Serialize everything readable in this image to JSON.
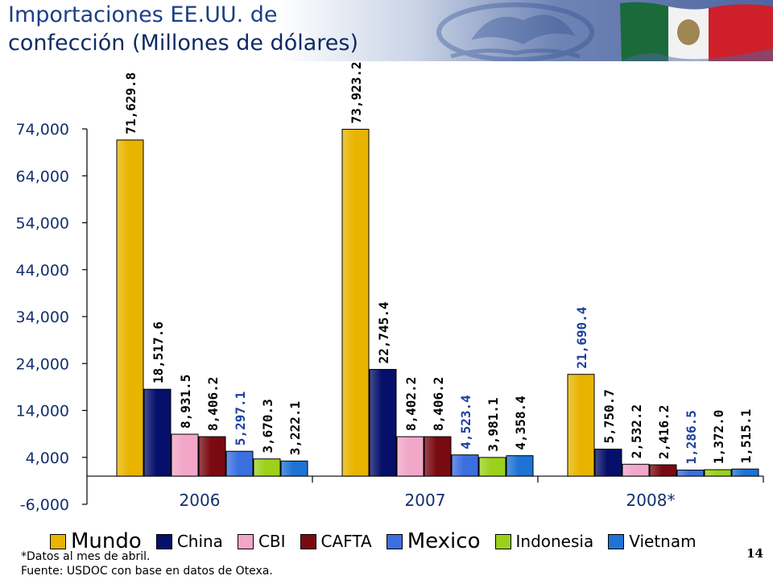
{
  "header": {
    "title_line1": "Importaciones EE.UU. de",
    "title_line2": "confección (Millones de dólares)"
  },
  "colors": {
    "title": "#1c3f86",
    "axis_text": "#14306e",
    "highlight_label": "#1c3fa0"
  },
  "icons": [
    "eagle-seal-icon",
    "mexico-flag-icon"
  ],
  "chart_data": {
    "type": "bar",
    "title": "",
    "xlabel": "",
    "ylabel": "",
    "ylim": [
      -6000,
      74000
    ],
    "yticks": [
      -6000,
      4000,
      14000,
      24000,
      34000,
      44000,
      54000,
      64000,
      74000
    ],
    "ytick_labels": [
      "-6,000",
      "4,000",
      "14,000",
      "24,000",
      "34,000",
      "44,000",
      "54,000",
      "64,000",
      "74,000"
    ],
    "categories": [
      "2006",
      "2007",
      "2008*"
    ],
    "grid": false,
    "legend_position": "bottom",
    "series": [
      {
        "name": "Mundo",
        "color": "#e8b400",
        "values": [
          71629.8,
          73923.2,
          21690.4
        ],
        "labels": [
          "71,629.8",
          "73,923.2",
          "21,690.4"
        ]
      },
      {
        "name": "China",
        "color": "#06106b",
        "values": [
          18517.6,
          22745.4,
          5750.7
        ],
        "labels": [
          "18,517.6",
          "22,745.4",
          "5,750.7"
        ]
      },
      {
        "name": "CBI",
        "color": "#f2a6c8",
        "values": [
          8931.5,
          8402.2,
          2532.2
        ],
        "labels": [
          "8,931.5",
          "8,402.2",
          "2,532.2"
        ]
      },
      {
        "name": "CAFTA",
        "color": "#7a0a12",
        "values": [
          8406.2,
          8406.2,
          2416.2
        ],
        "labels": [
          "8,406.2",
          "8,406.2",
          "2,416.2"
        ]
      },
      {
        "name": "Mexico",
        "color": "#3b6fe0",
        "values": [
          5297.1,
          4523.4,
          1286.5
        ],
        "labels": [
          "5,297.1",
          "4,523.4",
          "1,286.5"
        ]
      },
      {
        "name": "Indonesia",
        "color": "#9bd11a",
        "values": [
          3670.3,
          3981.1,
          1372.0
        ],
        "labels": [
          "3,670.3",
          "3,981.1",
          "1,372.0"
        ]
      },
      {
        "name": "Vietnam",
        "color": "#1e73d4",
        "values": [
          3222.1,
          4358.4,
          1515.1
        ],
        "labels": [
          "3,222.1",
          "4,358.4",
          "1,515.1"
        ]
      }
    ]
  },
  "legend": [
    {
      "label": "Mundo",
      "color": "#e8b400"
    },
    {
      "label": "China",
      "color": "#06106b"
    },
    {
      "label": "CBI",
      "color": "#f2a6c8"
    },
    {
      "label": "CAFTA",
      "color": "#7a0a12"
    },
    {
      "label": "Mexico",
      "color": "#3b6fe0"
    },
    {
      "label": "Indonesia",
      "color": "#9bd11a"
    },
    {
      "label": "Vietnam",
      "color": "#1e73d4"
    }
  ],
  "notes": {
    "line1": "*Datos al mes de abril.",
    "line2": "Fuente: USDOC con base en datos de Otexa."
  },
  "page_number": "14"
}
